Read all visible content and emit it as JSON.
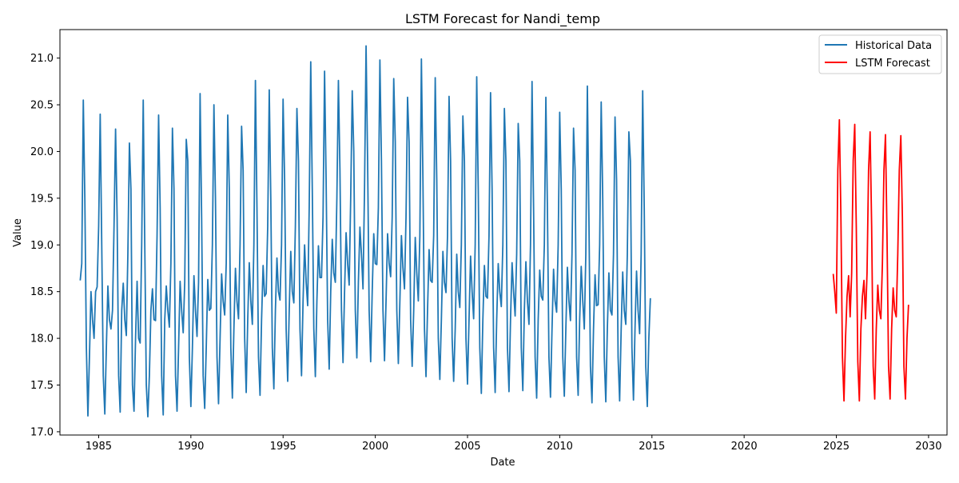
{
  "chart_data": {
    "type": "line",
    "title": "LSTM Forecast for Nandi_temp",
    "xlabel": "Date",
    "ylabel": "Value",
    "xlim": [
      1982.9,
      2031.0
    ],
    "ylim": [
      16.965,
      21.305
    ],
    "x_ticks": [
      1985,
      1990,
      1995,
      2000,
      2005,
      2010,
      2015,
      2020,
      2025,
      2030
    ],
    "y_ticks": [
      17.0,
      17.5,
      18.0,
      18.5,
      19.0,
      19.5,
      20.0,
      20.5,
      21.0
    ],
    "grid": false,
    "legend_position": "upper right",
    "series": [
      {
        "name": "Historical Data",
        "color": "#1f77b4",
        "x_start": 1984.0,
        "step_years": 0.08333,
        "y": [
          18.62,
          18.8,
          20.55,
          19.5,
          17.9,
          17.17,
          17.8,
          18.5,
          18.2,
          18.0,
          18.5,
          18.55,
          19.2,
          20.4,
          19.0,
          17.6,
          17.19,
          17.9,
          18.56,
          18.2,
          18.1,
          18.3,
          19.2,
          20.24,
          19.3,
          17.6,
          17.21,
          18.3,
          18.59,
          18.2,
          18.03,
          18.9,
          20.09,
          19.6,
          17.5,
          17.22,
          18.0,
          18.61,
          18.0,
          17.95,
          19.0,
          20.55,
          19.0,
          17.5,
          17.16,
          17.6,
          18.3,
          18.53,
          18.2,
          18.19,
          19.1,
          20.39,
          19.4,
          17.6,
          17.18,
          18.2,
          18.56,
          18.3,
          18.12,
          18.8,
          20.25,
          19.6,
          17.6,
          17.22,
          17.9,
          18.61,
          18.3,
          18.06,
          18.6,
          20.13,
          19.9,
          17.8,
          17.27,
          17.9,
          18.67,
          18.3,
          18.02,
          18.6,
          20.62,
          19.3,
          17.6,
          17.25,
          17.9,
          18.63,
          18.3,
          18.32,
          19.0,
          20.5,
          19.5,
          17.8,
          17.3,
          18.0,
          18.69,
          18.4,
          18.25,
          18.8,
          20.39,
          19.6,
          17.9,
          17.36,
          18.1,
          18.75,
          18.4,
          18.21,
          19.0,
          20.27,
          19.8,
          18.0,
          17.42,
          18.2,
          18.81,
          18.4,
          18.15,
          19.0,
          20.76,
          19.4,
          17.8,
          17.39,
          18.2,
          18.78,
          18.45,
          18.48,
          19.2,
          20.66,
          19.5,
          17.9,
          17.46,
          18.3,
          18.86,
          18.5,
          18.41,
          19.0,
          20.56,
          19.7,
          18.1,
          17.54,
          18.3,
          18.93,
          18.5,
          18.38,
          19.2,
          20.46,
          19.9,
          18.1,
          17.6,
          18.4,
          19.0,
          18.6,
          18.35,
          19.4,
          20.96,
          19.6,
          18.1,
          17.59,
          18.4,
          18.99,
          18.65,
          18.65,
          19.3,
          20.86,
          19.7,
          18.2,
          17.67,
          18.5,
          19.06,
          18.7,
          18.6,
          19.5,
          20.76,
          19.8,
          18.3,
          17.74,
          18.5,
          19.13,
          18.8,
          18.57,
          19.5,
          20.65,
          20.0,
          18.3,
          17.79,
          18.6,
          19.19,
          18.9,
          18.53,
          19.6,
          21.13,
          19.9,
          18.3,
          17.75,
          18.5,
          19.12,
          18.8,
          18.79,
          19.4,
          20.98,
          19.9,
          18.3,
          17.76,
          18.4,
          19.12,
          18.8,
          18.66,
          19.3,
          20.78,
          20.1,
          18.3,
          17.73,
          18.4,
          19.1,
          18.75,
          18.53,
          19.3,
          20.58,
          20.1,
          18.2,
          17.7,
          18.3,
          19.08,
          18.7,
          18.4,
          19.1,
          20.99,
          19.7,
          18.1,
          17.59,
          18.3,
          18.95,
          18.62,
          18.6,
          19.1,
          20.79,
          19.7,
          18.0,
          17.56,
          18.2,
          18.93,
          18.6,
          18.49,
          19.1,
          20.59,
          19.9,
          18.0,
          17.54,
          18.1,
          18.9,
          18.5,
          18.33,
          19.0,
          20.38,
          19.9,
          18.0,
          17.51,
          18.2,
          18.88,
          18.5,
          18.21,
          19.0,
          20.8,
          19.6,
          17.9,
          17.41,
          18.2,
          18.78,
          18.45,
          18.43,
          19.1,
          20.63,
          19.6,
          17.9,
          17.42,
          18.2,
          18.8,
          18.5,
          18.34,
          19.0,
          20.46,
          19.9,
          17.9,
          17.43,
          18.2,
          18.81,
          18.5,
          18.24,
          18.9,
          20.3,
          19.9,
          17.9,
          17.44,
          18.3,
          18.82,
          18.4,
          18.15,
          19.0,
          20.75,
          19.4,
          17.8,
          17.36,
          18.2,
          18.73,
          18.45,
          18.41,
          19.0,
          20.58,
          19.4,
          17.8,
          17.37,
          18.1,
          18.74,
          18.4,
          18.28,
          19.0,
          20.42,
          19.6,
          17.8,
          17.38,
          18.1,
          18.76,
          18.4,
          18.19,
          18.9,
          20.25,
          19.8,
          17.8,
          17.39,
          18.2,
          18.77,
          18.4,
          18.1,
          18.9,
          20.7,
          19.3,
          17.7,
          17.31,
          18.1,
          18.68,
          18.35,
          18.36,
          19.0,
          20.53,
          19.5,
          17.8,
          17.32,
          18.1,
          18.7,
          18.3,
          18.25,
          18.9,
          20.37,
          19.7,
          17.8,
          17.33,
          18.1,
          18.71,
          18.3,
          18.15,
          18.9,
          20.21,
          19.9,
          17.9,
          17.34,
          18.1,
          18.72,
          18.3,
          18.05,
          18.9,
          20.65,
          19.4,
          17.7,
          17.27,
          18.0,
          18.43
        ]
      },
      {
        "name": "LSTM Forecast",
        "color": "#ff0000",
        "x_start": 2024.83,
        "step_years": 0.08333,
        "y": [
          18.69,
          18.5,
          18.27,
          19.8,
          20.34,
          19.3,
          17.8,
          17.33,
          18.0,
          18.45,
          18.67,
          18.23,
          18.7,
          19.9,
          20.29,
          19.2,
          17.75,
          17.33,
          18.1,
          18.45,
          18.62,
          18.21,
          18.7,
          19.8,
          20.21,
          19.2,
          17.7,
          17.35,
          18.1,
          18.57,
          18.3,
          18.21,
          18.8,
          19.8,
          20.18,
          19.1,
          17.7,
          17.35,
          18.1,
          18.54,
          18.3,
          18.23,
          18.9,
          19.8,
          20.17,
          19.3,
          17.7,
          17.35,
          18.0,
          18.36
        ]
      }
    ]
  }
}
